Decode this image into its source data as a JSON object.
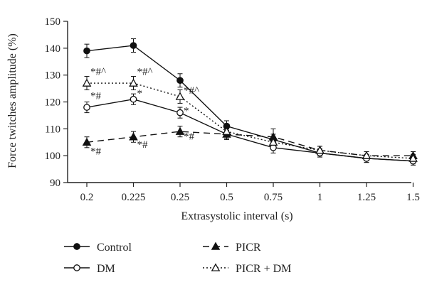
{
  "chart_data": {
    "type": "line",
    "title": "",
    "xlabel": "Extrasystolic interval (s)",
    "ylabel": "Force twitches amplitude (%)",
    "ylim": [
      90,
      150
    ],
    "yticks": [
      "90",
      "100",
      "110",
      "120",
      "130",
      "140",
      "150"
    ],
    "categories": [
      "0.2",
      "0.225",
      "0.25",
      "0.5",
      "0.75",
      "1",
      "1.25",
      "1.5"
    ],
    "grid": false,
    "legend_position": "bottom",
    "series": [
      {
        "name": "Control",
        "marker": "filled-circle",
        "line": "solid",
        "values": [
          139,
          141,
          128,
          111,
          106,
          101,
          99,
          98
        ],
        "errors": [
          2.5,
          2.5,
          2.5,
          2,
          2,
          1.5,
          1.5,
          1.5
        ]
      },
      {
        "name": "DM",
        "marker": "open-circle",
        "line": "solid",
        "values": [
          118,
          121,
          116,
          108,
          103,
          101,
          99,
          98
        ],
        "errors": [
          2,
          2,
          2,
          2,
          2,
          1.5,
          1.5,
          1.5
        ]
      },
      {
        "name": "PICR",
        "marker": "filled-triangle",
        "line": "dashed",
        "values": [
          105,
          107,
          109,
          108,
          107,
          102,
          100,
          100
        ],
        "errors": [
          2,
          2,
          2,
          1.5,
          3,
          1.5,
          1.5,
          1.5
        ]
      },
      {
        "name": "PICR + DM",
        "marker": "open-triangle",
        "line": "dotted",
        "values": [
          127,
          127,
          122,
          109,
          105,
          102,
          100,
          99
        ],
        "errors": [
          2.5,
          2.5,
          2.5,
          2,
          2,
          1.5,
          1.5,
          1.5
        ]
      }
    ],
    "annotations": [
      {
        "text": "*#^",
        "category": 0,
        "y": 130
      },
      {
        "text": "*#",
        "category": 0,
        "y": 121
      },
      {
        "text": "*#",
        "category": 0,
        "y": 100.5
      },
      {
        "text": "*#^",
        "category": 1,
        "y": 130
      },
      {
        "text": "*",
        "category": 1,
        "y": 122
      },
      {
        "text": "*#",
        "category": 1,
        "y": 103
      },
      {
        "text": "*#^",
        "category": 2,
        "y": 123
      },
      {
        "text": "*",
        "category": 2,
        "y": 115.5
      },
      {
        "text": "*#",
        "category": 2,
        "y": 106
      }
    ]
  }
}
